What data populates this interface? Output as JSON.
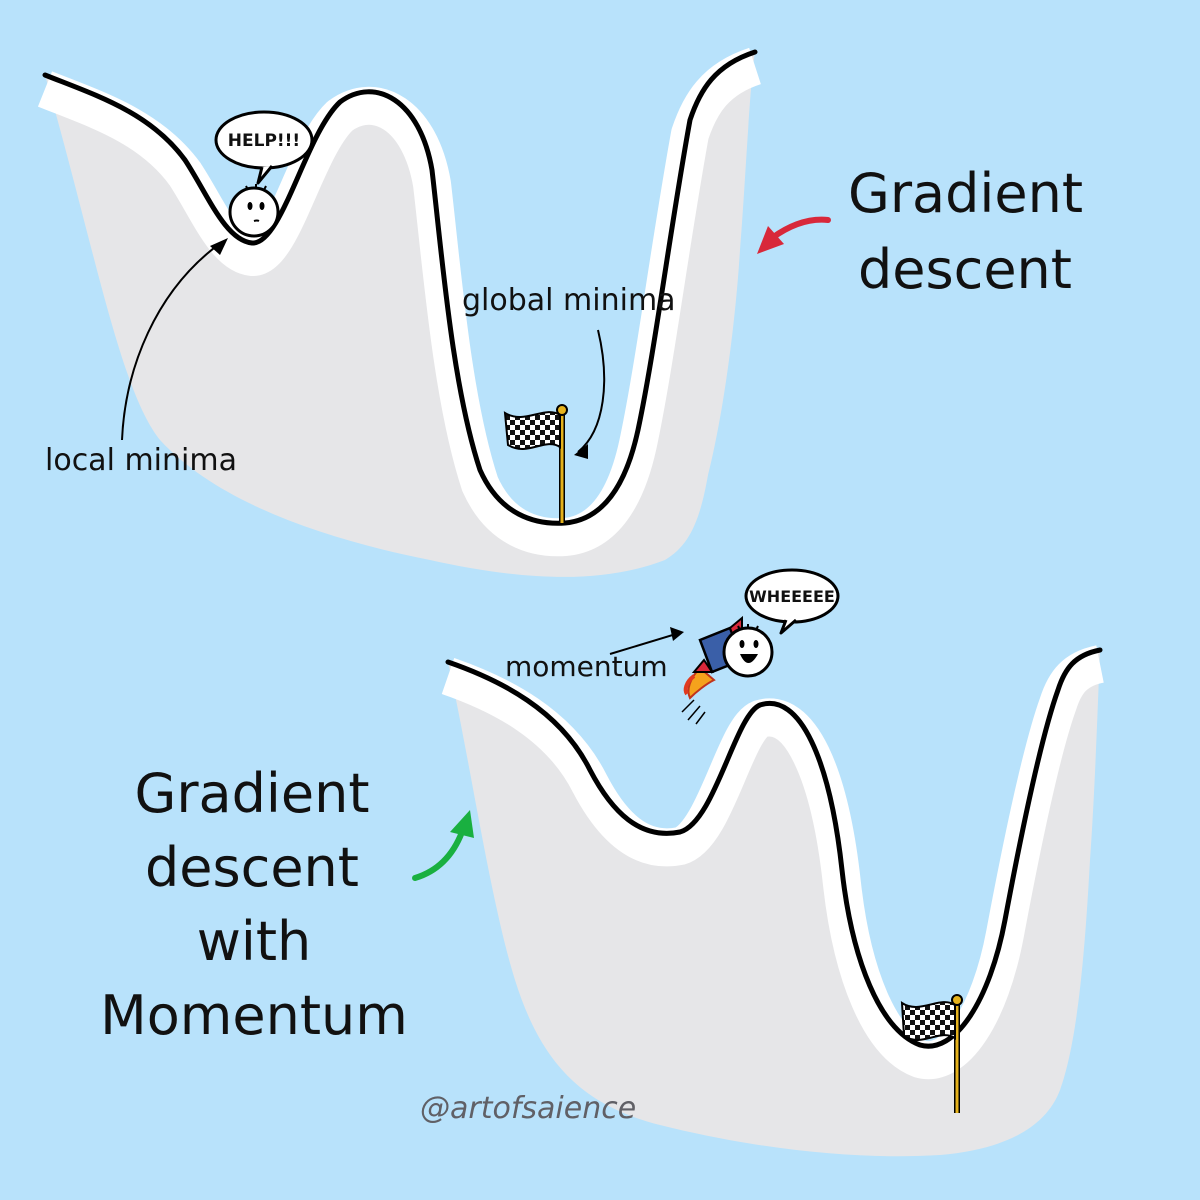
{
  "colors": {
    "background": "#b8e2fb",
    "landscape": "#e6e6e8",
    "outline": "#000000",
    "gradient_arrow": "#d8283a",
    "momentum_arrow": "#19b040",
    "flag_pole": "#e5b21c",
    "credit": "#606066"
  },
  "top_panel": {
    "title_line1": "Gradient",
    "title_line2": "descent",
    "bubble_text": "HELP!!!",
    "local_label": "local minima",
    "global_label": "global minima"
  },
  "bottom_panel": {
    "title_line1": "Gradient",
    "title_line2": "descent",
    "title_line3": "with",
    "title_line4": "Momentum",
    "bubble_text": "WHEEEEE",
    "momentum_label": "momentum"
  },
  "credit": "@artofsaience",
  "icons": [
    "sad-ball-icon",
    "happy-ball-icon",
    "rocket-icon",
    "checkered-flag-icon"
  ]
}
